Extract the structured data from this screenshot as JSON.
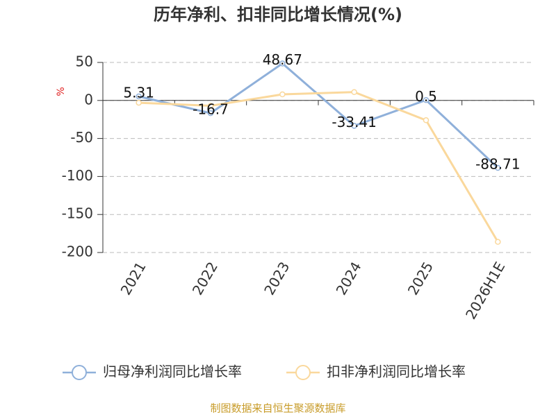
{
  "chart_data": {
    "type": "line",
    "title": "历年净利、扣非同比增长情况(%)",
    "y_label": "%",
    "categories": [
      "2021",
      "2022",
      "2023",
      "2024",
      "2025",
      "2026H1E"
    ],
    "series": [
      {
        "name": "归母净利润同比增长率",
        "color": "#8fb0da",
        "values": [
          5.31,
          -16.7,
          48.67,
          -33.41,
          0.5,
          -88.71
        ],
        "show_labels": true
      },
      {
        "name": "扣非净利润同比增长率",
        "color": "#fad89c",
        "values": [
          -3,
          -7,
          8,
          11,
          -26,
          -186
        ],
        "show_labels": false
      }
    ],
    "ylim": [
      -200,
      50
    ],
    "yticks": [
      50,
      0,
      -50,
      -100,
      -150,
      -200
    ],
    "grid": true,
    "legend": "bottom",
    "source": "制图数据来自恒生聚源数据库"
  }
}
